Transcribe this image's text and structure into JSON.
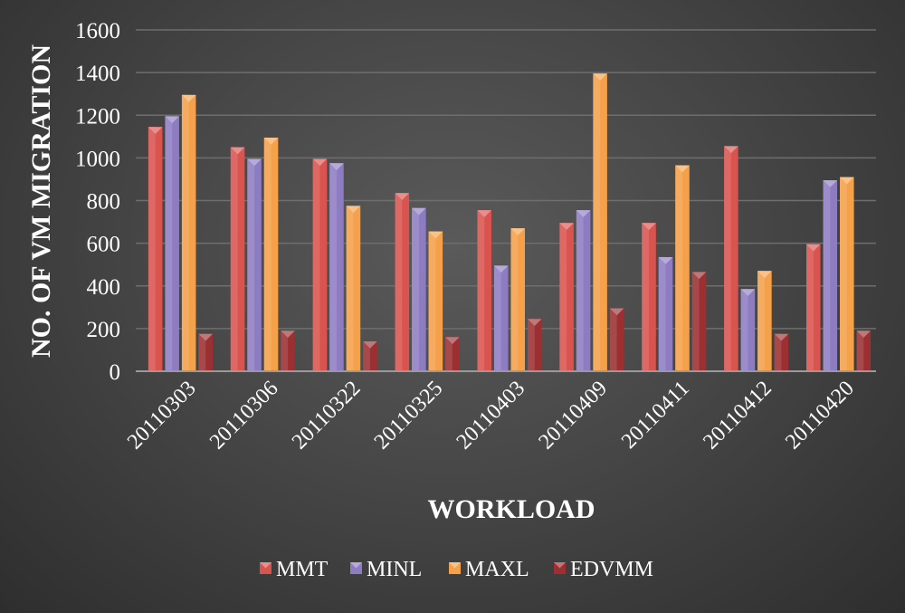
{
  "chart_data": {
    "type": "bar",
    "title": "",
    "xlabel": "WORKLOAD",
    "ylabel": "NO. OF VM MIGRATION",
    "categories": [
      "20110303",
      "20110306",
      "20110322",
      "20110325",
      "20110403",
      "20110409",
      "20110411",
      "20110412",
      "20110420"
    ],
    "series": [
      {
        "name": "MMT",
        "color": "#d9534f",
        "values": [
          1145,
          1050,
          995,
          835,
          755,
          695,
          695,
          1055,
          595
        ]
      },
      {
        "name": "MINL",
        "color": "#8e7cc3",
        "values": [
          1195,
          995,
          975,
          765,
          495,
          755,
          535,
          385,
          895
        ]
      },
      {
        "name": "MAXL",
        "color": "#f4a14a",
        "values": [
          1295,
          1095,
          775,
          655,
          670,
          1395,
          965,
          470,
          910
        ]
      },
      {
        "name": "EDVMM",
        "color": "#9b2f31",
        "values": [
          175,
          190,
          140,
          160,
          245,
          295,
          465,
          175,
          190
        ]
      }
    ],
    "ylim": [
      0,
      1600
    ],
    "yticks": [
      0,
      200,
      400,
      600,
      800,
      1000,
      1200,
      1400,
      1600
    ],
    "grid": true,
    "legend_position": "bottom"
  }
}
